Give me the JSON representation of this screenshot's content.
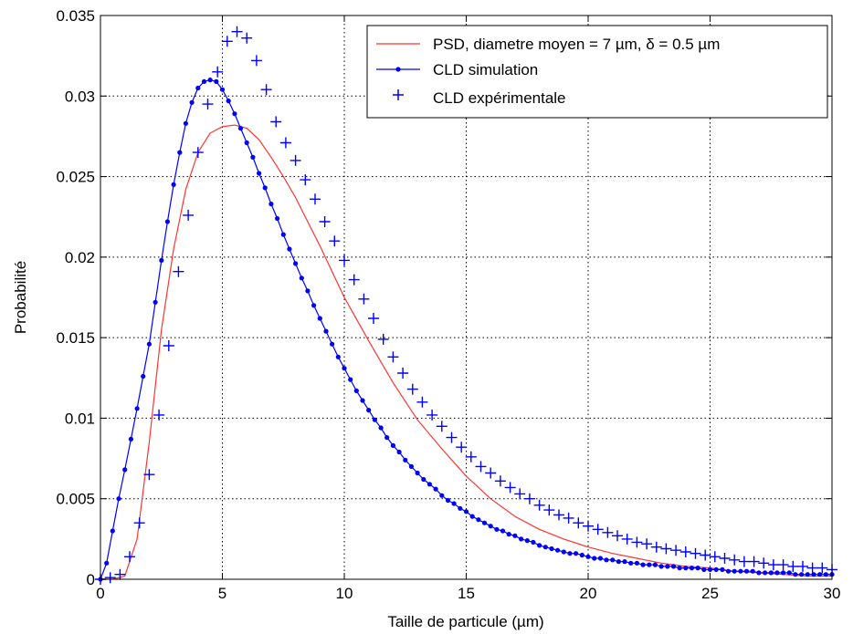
{
  "chart_data": {
    "type": "line",
    "title": "",
    "xlabel": "Taille de particule (µm)",
    "ylabel": "Probabilité",
    "xlim": [
      0,
      30
    ],
    "ylim": [
      0,
      0.035
    ],
    "xticks": [
      0,
      5,
      10,
      15,
      20,
      25,
      30
    ],
    "xtick_labels": [
      "0",
      "5",
      "10",
      "15",
      "20",
      "25",
      "30"
    ],
    "yticks": [
      0,
      0.005,
      0.01,
      0.015,
      0.02,
      0.025,
      0.03,
      0.035
    ],
    "ytick_labels": [
      "0",
      "0.005",
      "0.01",
      "0.015",
      "0.02",
      "0.025",
      "0.03",
      "0.035"
    ],
    "grid": true,
    "legend_position": "top-right",
    "series": [
      {
        "name": "PSD, diametre moyen = 7 µm, δ = 0.5 µm",
        "style": "line",
        "color": "#ff3333",
        "x": [
          0,
          0.5,
          1.0,
          1.5,
          2.0,
          2.5,
          3.0,
          3.5,
          4.0,
          4.5,
          5.0,
          5.5,
          6.0,
          6.5,
          7.0,
          7.5,
          8.0,
          8.5,
          9.0,
          9.5,
          10.0,
          11.0,
          12.0,
          13.0,
          14.0,
          15.0,
          16.0,
          17.0,
          18.0,
          19.0,
          20.0,
          21.0,
          22.0,
          23.0,
          24.0,
          25.0,
          26.0,
          27.0,
          28.0,
          29.0,
          30.0
        ],
        "y": [
          0,
          0,
          0.0002,
          0.0025,
          0.0085,
          0.0155,
          0.0205,
          0.0242,
          0.0265,
          0.0277,
          0.0281,
          0.0282,
          0.028,
          0.0273,
          0.0262,
          0.025,
          0.0237,
          0.0222,
          0.0207,
          0.0191,
          0.0175,
          0.0148,
          0.0122,
          0.0099,
          0.0081,
          0.0064,
          0.005,
          0.0039,
          0.0031,
          0.0025,
          0.002,
          0.0016,
          0.0013,
          0.001,
          0.0008,
          0.0007,
          0.0005,
          0.0004,
          0.0003,
          0.0002,
          0.0002
        ]
      },
      {
        "name": "CLD simulation",
        "style": "line-dot",
        "color": "#0000ff",
        "x": [
          0,
          0.25,
          0.5,
          0.75,
          1.0,
          1.25,
          1.5,
          1.75,
          2.0,
          2.25,
          2.5,
          2.75,
          3.0,
          3.25,
          3.5,
          3.75,
          4.0,
          4.25,
          4.5,
          4.75,
          5.0,
          5.25,
          5.5,
          5.75,
          6.0,
          6.25,
          6.5,
          6.75,
          7.0,
          7.25,
          7.5,
          7.75,
          8.0,
          8.25,
          8.5,
          8.75,
          9.0,
          9.25,
          9.5,
          9.75,
          10.0,
          10.25,
          10.5,
          10.75,
          11.0,
          11.25,
          11.5,
          11.75,
          12.0,
          12.25,
          12.5,
          12.75,
          13.0,
          13.25,
          13.5,
          13.75,
          14.0,
          14.25,
          14.5,
          14.75,
          15.0,
          15.25,
          15.5,
          15.75,
          16.0,
          16.25,
          16.5,
          16.75,
          17.0,
          17.25,
          17.5,
          17.75,
          18.0,
          18.25,
          18.5,
          18.75,
          19.0,
          19.25,
          19.5,
          19.75,
          20.0,
          20.25,
          20.5,
          20.75,
          21.0,
          21.25,
          21.5,
          21.75,
          22.0,
          22.25,
          22.5,
          22.75,
          23.0,
          23.25,
          23.5,
          23.75,
          24.0,
          24.25,
          24.5,
          24.75,
          25.0,
          25.25,
          25.5,
          25.75,
          26.0,
          26.25,
          26.5,
          26.75,
          27.0,
          27.25,
          27.5,
          27.75,
          28.0,
          28.25,
          28.5,
          28.75,
          29.0,
          29.25,
          29.5,
          29.75,
          30.0
        ],
        "y": [
          0,
          0.001,
          0.003,
          0.005,
          0.0068,
          0.0087,
          0.0106,
          0.0126,
          0.0146,
          0.0172,
          0.0198,
          0.0222,
          0.0245,
          0.0265,
          0.0283,
          0.0296,
          0.0305,
          0.0309,
          0.031,
          0.0309,
          0.0304,
          0.0297,
          0.0289,
          0.028,
          0.0271,
          0.0262,
          0.0252,
          0.0243,
          0.0233,
          0.0224,
          0.0214,
          0.0205,
          0.0196,
          0.0187,
          0.0179,
          0.017,
          0.0162,
          0.0154,
          0.0146,
          0.0138,
          0.0131,
          0.0124,
          0.0117,
          0.0111,
          0.0105,
          0.0099,
          0.0094,
          0.0088,
          0.0083,
          0.0079,
          0.0074,
          0.007,
          0.0066,
          0.0062,
          0.0059,
          0.0056,
          0.0052,
          0.0049,
          0.0047,
          0.0044,
          0.0042,
          0.0039,
          0.0037,
          0.0035,
          0.0033,
          0.0031,
          0.003,
          0.0028,
          0.0027,
          0.0025,
          0.0024,
          0.0023,
          0.0021,
          0.002,
          0.0019,
          0.0018,
          0.0017,
          0.0016,
          0.0016,
          0.0015,
          0.0014,
          0.0013,
          0.0013,
          0.0012,
          0.0012,
          0.0011,
          0.0011,
          0.001,
          0.001,
          0.0009,
          0.0009,
          0.0009,
          0.0008,
          0.0008,
          0.0008,
          0.0007,
          0.0007,
          0.0007,
          0.0007,
          0.0006,
          0.0006,
          0.0006,
          0.0006,
          0.0005,
          0.0005,
          0.0005,
          0.0005,
          0.0005,
          0.0004,
          0.0004,
          0.0004,
          0.0004,
          0.0004,
          0.0004,
          0.0003,
          0.0003,
          0.0003,
          0.0003,
          0.0003,
          0.0003,
          0.0003
        ]
      },
      {
        "name": "CLD expérimentale",
        "style": "plus",
        "color": "#0000ff",
        "x": [
          0,
          0.4,
          0.8,
          1.2,
          1.6,
          2.0,
          2.4,
          2.8,
          3.2,
          3.6,
          4.0,
          4.4,
          4.8,
          5.2,
          5.6,
          6.0,
          6.4,
          6.8,
          7.2,
          7.6,
          8.0,
          8.4,
          8.8,
          9.2,
          9.6,
          10.0,
          10.4,
          10.8,
          11.2,
          11.6,
          12.0,
          12.4,
          12.8,
          13.2,
          13.6,
          14.0,
          14.4,
          14.8,
          15.2,
          15.6,
          16.0,
          16.4,
          16.8,
          17.2,
          17.6,
          18.0,
          18.4,
          18.8,
          19.2,
          19.6,
          20.0,
          20.4,
          20.8,
          21.2,
          21.6,
          22.0,
          22.4,
          22.8,
          23.2,
          23.6,
          24.0,
          24.4,
          24.8,
          25.2,
          25.6,
          26.0,
          26.4,
          26.8,
          27.2,
          27.6,
          28.0,
          28.4,
          28.8,
          29.2,
          29.6,
          30.0
        ],
        "y": [
          0,
          0.0001,
          0.0003,
          0.0014,
          0.0035,
          0.0065,
          0.0102,
          0.0145,
          0.0191,
          0.0226,
          0.0265,
          0.0295,
          0.0315,
          0.0334,
          0.034,
          0.0336,
          0.0322,
          0.0304,
          0.0284,
          0.0271,
          0.026,
          0.0248,
          0.0236,
          0.0222,
          0.021,
          0.0198,
          0.0186,
          0.0174,
          0.0162,
          0.0149,
          0.0138,
          0.0128,
          0.0118,
          0.011,
          0.0102,
          0.0095,
          0.0088,
          0.0082,
          0.0076,
          0.007,
          0.0066,
          0.0061,
          0.0057,
          0.0053,
          0.005,
          0.0046,
          0.0043,
          0.004,
          0.0038,
          0.0035,
          0.0033,
          0.0031,
          0.0029,
          0.0027,
          0.0025,
          0.0023,
          0.0022,
          0.002,
          0.0019,
          0.0018,
          0.0017,
          0.0016,
          0.0015,
          0.0014,
          0.0013,
          0.0012,
          0.0011,
          0.0011,
          0.001,
          0.0009,
          0.0009,
          0.0008,
          0.0008,
          0.0007,
          0.0007,
          0.0006
        ]
      }
    ]
  }
}
